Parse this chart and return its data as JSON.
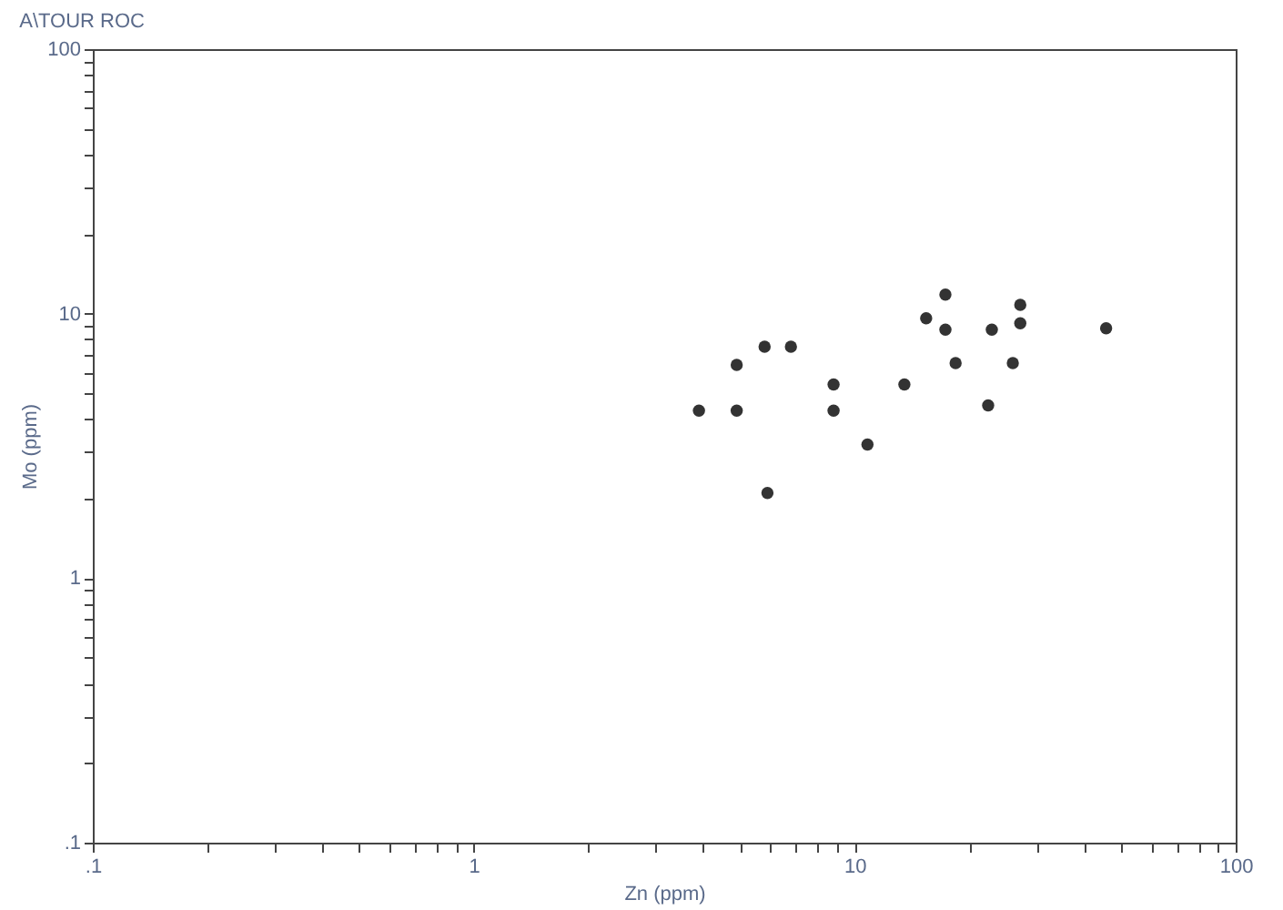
{
  "chart_data": {
    "type": "scatter",
    "title": "A\\TOUR ROC",
    "xlabel": "Zn (ppm)",
    "ylabel": "Mo (ppm)",
    "log": "xy",
    "grid": false,
    "marker": "circle",
    "x": [
      3.9,
      4.9,
      4.9,
      5.8,
      6.8,
      5.9,
      8.8,
      8.8,
      10.8,
      13.5,
      15.4,
      17.3,
      17.3,
      18.4,
      22.9,
      22.4,
      26,
      27.2,
      27.2,
      45.7
    ],
    "series": [
      {
        "color": "#333333",
        "values": [
          4.3,
          4.3,
          6.4,
          7.5,
          7.5,
          2.1,
          5.4,
          4.3,
          3.2,
          5.4,
          9.6,
          11.8,
          8.7,
          6.5,
          8.7,
          4.5,
          6.5,
          10.8,
          9.2,
          8.8
        ]
      }
    ],
    "xlim": [
      0.1,
      100
    ],
    "ylim": [
      0.1,
      100
    ],
    "xticks": [
      {
        "value": 0.1,
        "label": ".1"
      },
      {
        "value": 0.2,
        "label": null
      },
      {
        "value": 0.3,
        "label": null
      },
      {
        "value": 0.4,
        "label": null
      },
      {
        "value": 0.5,
        "label": null
      },
      {
        "value": 0.6,
        "label": null
      },
      {
        "value": 0.7,
        "label": null
      },
      {
        "value": 0.8,
        "label": null
      },
      {
        "value": 0.9,
        "label": null
      },
      1,
      {
        "value": 2,
        "label": null
      },
      {
        "value": 3,
        "label": null
      },
      {
        "value": 4,
        "label": null
      },
      {
        "value": 5,
        "label": null
      },
      {
        "value": 6,
        "label": null
      },
      {
        "value": 7,
        "label": null
      },
      {
        "value": 8,
        "label": null
      },
      {
        "value": 9,
        "label": null
      },
      10,
      {
        "value": 20,
        "label": null
      },
      {
        "value": 30,
        "label": null
      },
      {
        "value": 40,
        "label": null
      },
      {
        "value": 50,
        "label": null
      },
      {
        "value": 60,
        "label": null
      },
      {
        "value": 70,
        "label": null
      },
      {
        "value": 80,
        "label": null
      },
      {
        "value": 90,
        "label": null
      },
      100
    ],
    "yticks": [
      {
        "value": 0.1,
        "label": ".1"
      },
      {
        "value": 0.2,
        "label": null
      },
      {
        "value": 0.3,
        "label": null
      },
      {
        "value": 0.4,
        "label": null
      },
      {
        "value": 0.5,
        "label": null
      },
      {
        "value": 0.6,
        "label": null
      },
      {
        "value": 0.7,
        "label": null
      },
      {
        "value": 0.8,
        "label": null
      },
      {
        "value": 0.9,
        "label": null
      },
      1,
      {
        "value": 2,
        "label": null
      },
      {
        "value": 3,
        "label": null
      },
      {
        "value": 4,
        "label": null
      },
      {
        "value": 5,
        "label": null
      },
      {
        "value": 6,
        "label": null
      },
      {
        "value": 7,
        "label": null
      },
      {
        "value": 8,
        "label": null
      },
      {
        "value": 9,
        "label": null
      },
      10,
      {
        "value": 20,
        "label": null
      },
      {
        "value": 30,
        "label": null
      },
      {
        "value": 40,
        "label": null
      },
      {
        "value": 50,
        "label": null
      },
      {
        "value": 60,
        "label": null
      },
      {
        "value": 70,
        "label": null
      },
      {
        "value": 80,
        "label": null
      },
      {
        "value": 90,
        "label": null
      },
      100
    ]
  }
}
